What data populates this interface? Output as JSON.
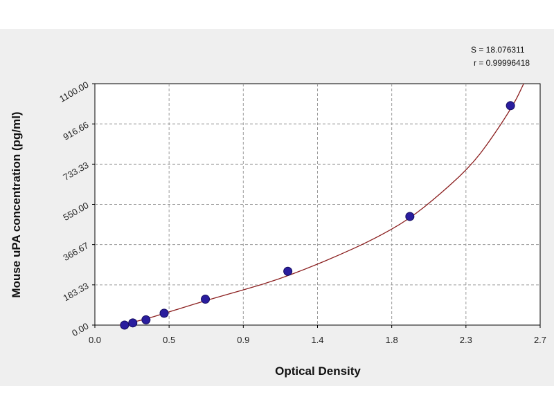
{
  "chart_data": {
    "type": "scatter",
    "xlabel": "Optical Density",
    "ylabel": "Mouse uPA concentration (pg/ml)",
    "xlim": [
      0.0,
      2.7
    ],
    "ylim": [
      0.0,
      1100.0
    ],
    "x_ticks": [
      "0.0",
      "0.5",
      "0.9",
      "1.4",
      "1.8",
      "2.3",
      "2.7"
    ],
    "y_ticks": [
      "0.00",
      "183.33",
      "366.67",
      "550.00",
      "733.33",
      "916.66",
      "1100.00"
    ],
    "grid": true,
    "points": [
      {
        "x": 0.18,
        "y": 0
      },
      {
        "x": 0.23,
        "y": 10
      },
      {
        "x": 0.31,
        "y": 24
      },
      {
        "x": 0.42,
        "y": 54
      },
      {
        "x": 0.67,
        "y": 118
      },
      {
        "x": 1.17,
        "y": 245
      },
      {
        "x": 1.91,
        "y": 495
      },
      {
        "x": 2.52,
        "y": 1000
      }
    ],
    "fit_curve": [
      [
        0.15,
        0
      ],
      [
        0.3,
        25
      ],
      [
        0.5,
        72
      ],
      [
        0.7,
        118
      ],
      [
        0.9,
        160
      ],
      [
        1.1,
        205
      ],
      [
        1.3,
        262
      ],
      [
        1.5,
        325
      ],
      [
        1.7,
        395
      ],
      [
        1.9,
        480
      ],
      [
        2.1,
        600
      ],
      [
        2.3,
        740
      ],
      [
        2.45,
        900
      ],
      [
        2.55,
        1020
      ],
      [
        2.6,
        1100
      ]
    ],
    "annotations": [
      "S = 18.076311",
      "r = 0.99996418"
    ],
    "colors": {
      "point": "#2a1d9e",
      "point_edge": "#140c5e",
      "curve": "#8b1f1f",
      "grid": "#9a9a9a",
      "background": "#efefef",
      "plot_area": "#ffffff"
    }
  }
}
